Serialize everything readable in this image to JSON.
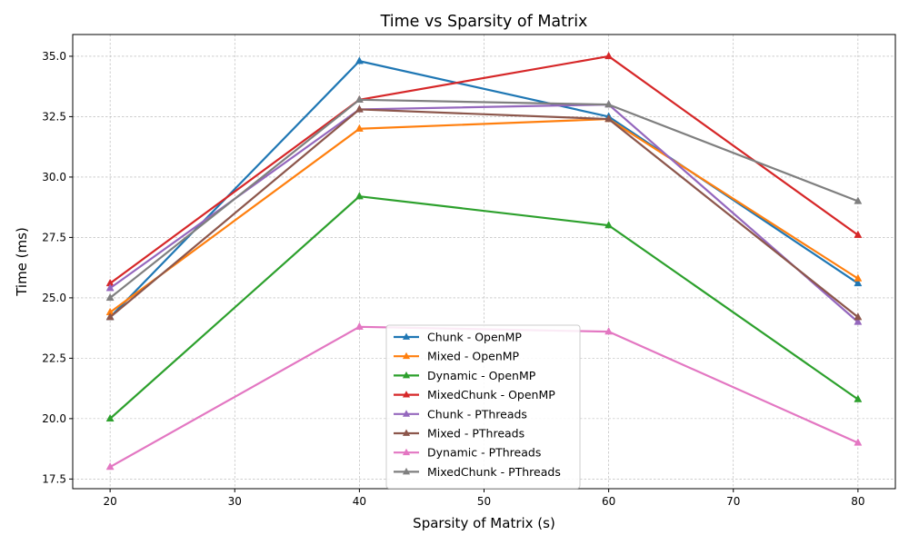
{
  "chart_data": {
    "type": "line",
    "title": "Time vs Sparsity of Matrix",
    "xlabel": "Sparsity of Matrix (s)",
    "ylabel": "Time (ms)",
    "x": [
      20,
      40,
      60,
      80
    ],
    "xlim": [
      17,
      83
    ],
    "ylim": [
      17.1,
      35.9
    ],
    "xticks": [
      20,
      30,
      40,
      50,
      60,
      70,
      80
    ],
    "yticks": [
      17.5,
      20.0,
      22.5,
      25.0,
      27.5,
      30.0,
      32.5,
      35.0
    ],
    "grid": true,
    "legend_position": "bottom-center",
    "marker": "triangle-up",
    "series": [
      {
        "name": "Chunk - OpenMP",
        "color": "#1f77b4",
        "values": [
          24.2,
          34.8,
          32.5,
          25.6
        ]
      },
      {
        "name": "Mixed - OpenMP",
        "color": "#ff7f0e",
        "values": [
          24.4,
          32.0,
          32.4,
          25.8
        ]
      },
      {
        "name": "Dynamic - OpenMP",
        "color": "#2ca02c",
        "values": [
          20.0,
          29.2,
          28.0,
          20.8
        ]
      },
      {
        "name": "MixedChunk - OpenMP",
        "color": "#d62728",
        "values": [
          25.6,
          33.2,
          35.0,
          27.6
        ]
      },
      {
        "name": "Chunk - PThreads",
        "color": "#9467bd",
        "values": [
          25.4,
          32.8,
          33.0,
          24.0
        ]
      },
      {
        "name": "Mixed - PThreads",
        "color": "#8c564b",
        "values": [
          24.2,
          32.8,
          32.4,
          24.2
        ]
      },
      {
        "name": "Dynamic - PThreads",
        "color": "#e377c2",
        "values": [
          18.0,
          23.8,
          23.6,
          19.0
        ]
      },
      {
        "name": "MixedChunk - PThreads",
        "color": "#7f7f7f",
        "values": [
          25.0,
          33.2,
          33.0,
          29.0
        ]
      }
    ]
  }
}
